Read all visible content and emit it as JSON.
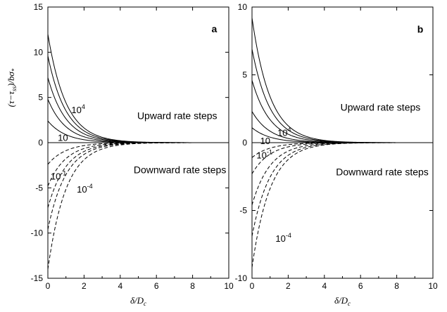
{
  "chart_data": [
    {
      "type": "line",
      "panel_label": "a",
      "xlabel": "δ/D_c",
      "ylabel": "(τ−τ_ss)/bσ*",
      "xlim": [
        0,
        10
      ],
      "ylim": [
        -15,
        15
      ],
      "xticks": [
        0,
        2,
        4,
        6,
        8,
        10
      ],
      "yticks": [
        -15,
        -10,
        -5,
        0,
        5,
        10,
        15
      ],
      "decay_constant": 1.0,
      "upward_label": "Upward rate steps",
      "downward_label": "Downward rate steps",
      "series_up": [
        {
          "label_base": "10",
          "label_exp": "4",
          "y0": 12.0
        },
        {
          "label_base": "",
          "label_exp": "",
          "y0": 9.6
        },
        {
          "label_base": "",
          "label_exp": "",
          "y0": 7.2
        },
        {
          "label_base": "",
          "label_exp": "",
          "y0": 4.8
        },
        {
          "label_base": "10",
          "label_exp": "",
          "y0": 2.4
        }
      ],
      "series_down": [
        {
          "label_base": "10",
          "label_exp": "-1",
          "y0": -2.4
        },
        {
          "label_base": "",
          "label_exp": "",
          "y0": -4.8
        },
        {
          "label_base": "",
          "label_exp": "",
          "y0": -7.2
        },
        {
          "label_base": "",
          "label_exp": "",
          "y0": -9.6
        },
        {
          "label_base": "10",
          "label_exp": "-4",
          "y0": -14.0
        }
      ]
    },
    {
      "type": "line",
      "panel_label": "b",
      "xlabel": "δ/D_c",
      "ylabel": "",
      "xlim": [
        0,
        10
      ],
      "ylim": [
        -10,
        10
      ],
      "xticks": [
        0,
        2,
        4,
        6,
        8,
        10
      ],
      "yticks": [
        -10,
        -5,
        0,
        5,
        10
      ],
      "decay_constant": 1.0,
      "upward_label": "Upward rate steps",
      "downward_label": "Downward rate steps",
      "series_up": [
        {
          "label_base": "",
          "label_exp": "",
          "y0": 9.2
        },
        {
          "label_base": "10",
          "label_exp": "4",
          "y0": 6.9
        },
        {
          "label_base": "",
          "label_exp": "",
          "y0": 4.6
        },
        {
          "label_base": "",
          "label_exp": "",
          "y0": 2.3
        },
        {
          "label_base": "10",
          "label_exp": "",
          "y0": 1.1
        }
      ],
      "series_down": [
        {
          "label_base": "10",
          "label_exp": "-1",
          "y0": -1.1
        },
        {
          "label_base": "",
          "label_exp": "",
          "y0": -2.3
        },
        {
          "label_base": "",
          "label_exp": "",
          "y0": -4.6
        },
        {
          "label_base": "",
          "label_exp": "",
          "y0": -6.9
        },
        {
          "label_base": "10",
          "label_exp": "-4",
          "y0": -9.2
        }
      ]
    }
  ]
}
